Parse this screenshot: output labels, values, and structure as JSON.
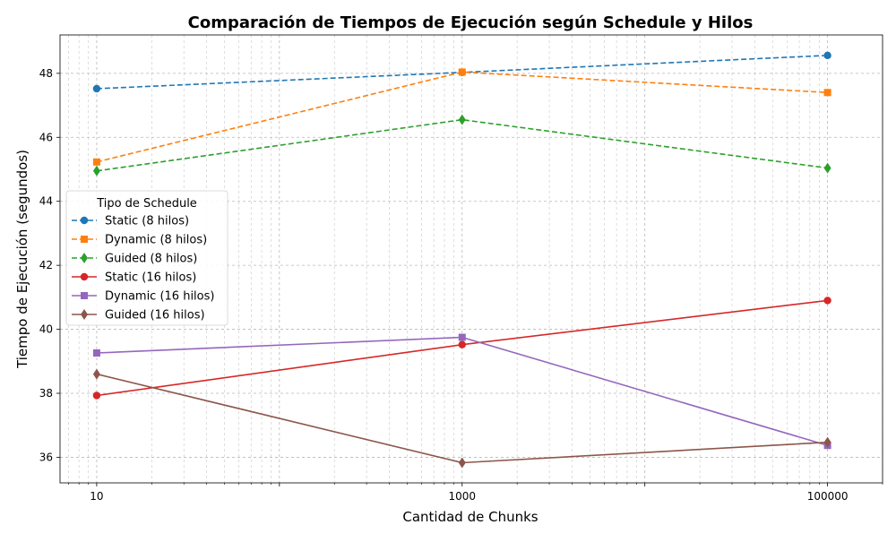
{
  "chart_data": {
    "type": "line",
    "title": "Comparación de Tiempos de Ejecución según Schedule y Hilos",
    "xlabel": "Cantidad de Chunks",
    "ylabel": "Tiempo de Ejecución (segundos)",
    "xscale": "log",
    "x": [
      10,
      1000,
      100000
    ],
    "x_ticks": [
      10,
      1000,
      100000
    ],
    "x_tick_labels": [
      "10",
      "1000",
      "100000"
    ],
    "xlim": [
      6.3,
      200000
    ],
    "ylim": [
      35.2,
      49.2
    ],
    "y_ticks": [
      36,
      38,
      40,
      42,
      44,
      46,
      48
    ],
    "y_tick_labels": [
      "36",
      "38",
      "40",
      "42",
      "44",
      "46",
      "48"
    ],
    "grid": true,
    "legend": {
      "title": "Tipo de Schedule",
      "placement": "center-left"
    },
    "series": [
      {
        "name": "Static (8 hilos)",
        "values": [
          47.52,
          48.03,
          48.56
        ],
        "color": "#1f77b4",
        "linestyle": "dashed",
        "marker": "circle"
      },
      {
        "name": "Dynamic (8 hilos)",
        "values": [
          45.23,
          48.04,
          47.4
        ],
        "color": "#ff7f0e",
        "linestyle": "dashed",
        "marker": "square"
      },
      {
        "name": "Guided (8 hilos)",
        "values": [
          44.95,
          46.55,
          45.04
        ],
        "color": "#2ca02c",
        "linestyle": "dashed",
        "marker": "diamond"
      },
      {
        "name": "Static (16 hilos)",
        "values": [
          37.93,
          39.52,
          40.9
        ],
        "color": "#d62728",
        "linestyle": "solid",
        "marker": "circle"
      },
      {
        "name": "Dynamic (16 hilos)",
        "values": [
          39.26,
          39.75,
          36.37
        ],
        "color": "#9467bd",
        "linestyle": "solid",
        "marker": "square"
      },
      {
        "name": "Guided (16 hilos)",
        "values": [
          38.6,
          35.83,
          36.47
        ],
        "color": "#8c564b",
        "linestyle": "solid",
        "marker": "diamond"
      }
    ]
  }
}
